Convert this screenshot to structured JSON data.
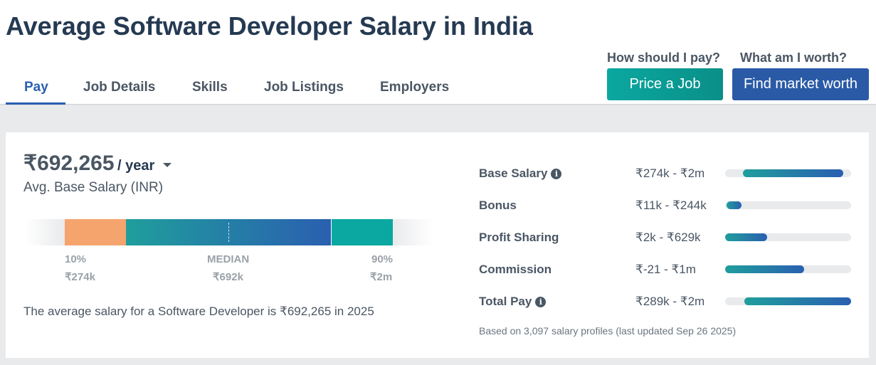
{
  "header": {
    "title": "Average Software Developer Salary in India"
  },
  "tabs": [
    "Pay",
    "Job Details",
    "Skills",
    "Job Listings",
    "Employers"
  ],
  "cta": [
    {
      "prompt": "How should I pay?",
      "button": "Price a Job"
    },
    {
      "prompt": "What am I worth?",
      "button": "Find market worth"
    }
  ],
  "summary": {
    "amount": "₹692,265",
    "period": "/ year",
    "caption": "Avg. Base Salary (INR)",
    "percentiles": [
      {
        "label": "10%",
        "value": "₹274k"
      },
      {
        "label": "MEDIAN",
        "value": "₹692k"
      },
      {
        "label": "90%",
        "value": "₹2m"
      }
    ],
    "sentence": "The average salary for a Software Developer is ₹692,265 in 2025"
  },
  "breakdown": {
    "rows": [
      {
        "label": "Base Salary",
        "range": "₹274k - ₹2m"
      },
      {
        "label": "Bonus",
        "range": "₹11k - ₹244k"
      },
      {
        "label": "Profit Sharing",
        "range": "₹2k - ₹629k"
      },
      {
        "label": "Commission",
        "range": "₹-21 - ₹1m"
      },
      {
        "label": "Total Pay",
        "range": "₹289k - ₹2m"
      }
    ],
    "footnote": "Based on 3,097 salary profiles (last updated Sep 26 2025)"
  }
}
